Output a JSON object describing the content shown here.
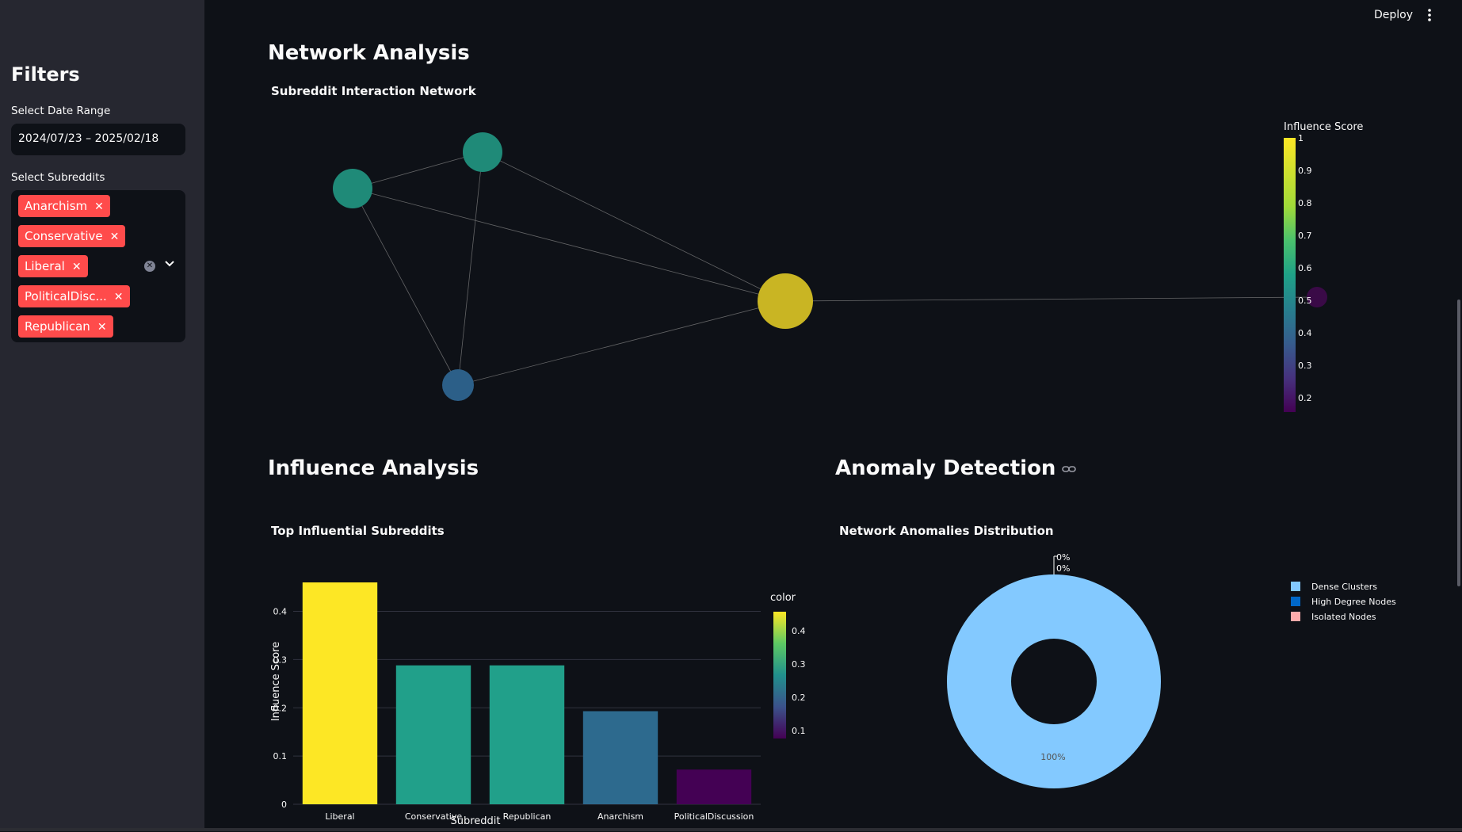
{
  "sidebar": {
    "title": "Filters",
    "date_label": "Select Date Range",
    "date_value": "2024/07/23 – 2025/02/18",
    "subreddit_label": "Select Subreddits",
    "selected": [
      "Anarchism",
      "Conservative",
      "Liberal",
      "PoliticalDisc...",
      "Republican"
    ],
    "chip_color": "#ff4b4b"
  },
  "topbar": {
    "deploy_label": "Deploy",
    "menu_icon": "kebab-menu-icon"
  },
  "sections": {
    "network": "Network Analysis",
    "influence": "Influence Analysis",
    "anomaly": "Anomaly Detection"
  },
  "network_chart": {
    "title": "Subreddit Interaction Network",
    "colorbar_title": "Influence Score",
    "colorbar_ticks": [
      "1",
      "0.9",
      "0.8",
      "0.7",
      "0.6",
      "0.5",
      "0.4",
      "0.3",
      "0.2"
    ]
  },
  "bar_chart_text": {
    "title": "Top Influential Subreddits",
    "xlabel": "Subreddit",
    "ylabel": "Influence Score",
    "colorbar_title": "color",
    "colorbar_ticks": [
      "0.4",
      "0.3",
      "0.2",
      "0.1"
    ]
  },
  "pie_chart_text": {
    "title": "Network Anomalies Distribution",
    "label_main": "100%",
    "label_zero_1": "0%",
    "label_zero_2": "0%"
  },
  "chart_data": [
    {
      "type": "bar",
      "title": "Top Influential Subreddits",
      "xlabel": "Subreddit",
      "ylabel": "Influence Score",
      "categories": [
        "Liberal",
        "Conservative",
        "Republican",
        "Anarchism",
        "PoliticalDiscussion"
      ],
      "values": [
        0.46,
        0.288,
        0.288,
        0.193,
        0.072
      ],
      "colors": [
        "#fde725",
        "#21a08a",
        "#21a08a",
        "#2d6a8e",
        "#440154"
      ],
      "ylim": [
        0,
        0.46
      ],
      "yticks": [
        0,
        0.1,
        0.2,
        0.3,
        0.4
      ],
      "grid": true
    },
    {
      "type": "pie",
      "title": "Network Anomalies Distribution",
      "donut": true,
      "labels": [
        "Dense Clusters",
        "High Degree Nodes",
        "Isolated Nodes"
      ],
      "values": [
        100,
        0,
        0
      ],
      "colors": [
        "#83c9ff",
        "#0068c9",
        "#ffabab"
      ],
      "legend": "right"
    }
  ]
}
